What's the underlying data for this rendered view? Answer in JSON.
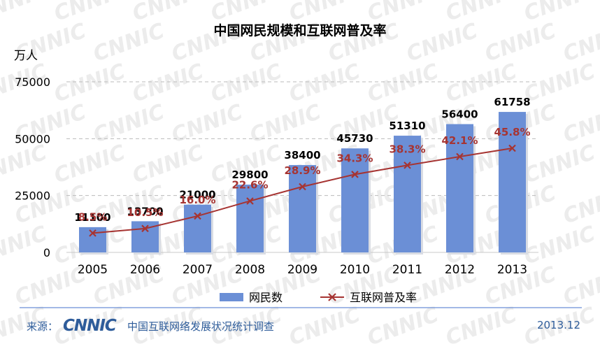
{
  "chart_data": {
    "type": "bar",
    "title": "中国网民规模和互联网普及率",
    "ylabel": "万人",
    "ylim": [
      0,
      75000
    ],
    "yticks": [
      0,
      25000,
      50000,
      75000
    ],
    "grid": true,
    "legend_placement": "bottom",
    "categories": [
      "2005",
      "2006",
      "2007",
      "2008",
      "2009",
      "2010",
      "2011",
      "2012",
      "2013"
    ],
    "series": [
      {
        "name": "网民数",
        "type": "bar",
        "color": "#6b8fd6",
        "values": [
          11100,
          13700,
          21000,
          29800,
          38400,
          45730,
          51310,
          56400,
          61758
        ],
        "labels": [
          "11100",
          "13700",
          "21000",
          "29800",
          "38400",
          "45730",
          "51310",
          "56400",
          "61758"
        ]
      },
      {
        "name": "互联网普及率",
        "type": "line",
        "color": "#a63432",
        "values": [
          8.5,
          10.5,
          16.0,
          22.6,
          28.9,
          34.3,
          38.3,
          42.1,
          45.8
        ],
        "labels": [
          "8.5%",
          "10.5%",
          "16.0%",
          "22.6%",
          "28.9%",
          "34.3%",
          "38.3%",
          "42.1%",
          "45.8%"
        ]
      }
    ]
  },
  "footer": {
    "source_label": "来源：",
    "logo_text": "CNNIC",
    "org": "中国互联网络发展状况统计调查",
    "date": "2013.12"
  },
  "colors": {
    "bar": "#6b8fd6",
    "line": "#a63432",
    "footer_text": "#2e5c9a",
    "watermark": "#ececec"
  }
}
